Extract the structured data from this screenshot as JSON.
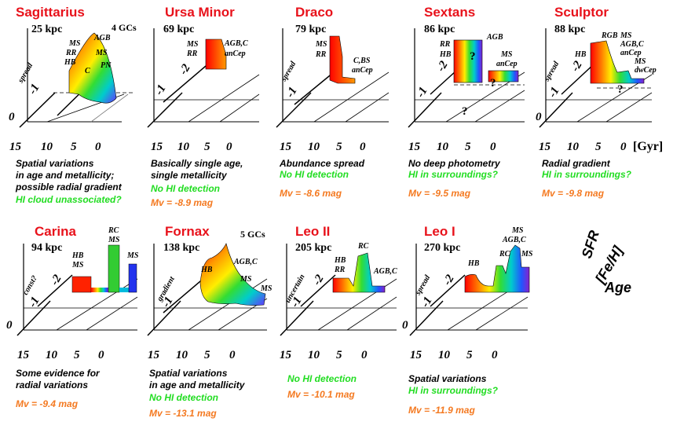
{
  "gyr_label": "[Gyr]",
  "legend": {
    "sfr": "SFR",
    "feh": "[Fe/H]",
    "age": "Age"
  },
  "colors": {
    "name": "#e8121b",
    "text": "#000000",
    "hi": "#22dd22",
    "mv": "#f47920"
  },
  "galaxies": [
    {
      "name": "Sagittarius",
      "distance": "25 kpc",
      "gcs": "4 GCs",
      "spread_label": "spread",
      "feh_ticks": [
        "-1"
      ],
      "zero_label": "0",
      "age_ticks": [
        "15",
        "10",
        "5",
        "0"
      ],
      "pop_labels": [
        "AGB",
        "MS",
        "RR",
        "HB",
        "MS",
        "PN",
        "C"
      ],
      "notes": [
        {
          "text": "Spatial variations",
          "color": "black"
        },
        {
          "text": "in age and metallicity;",
          "color": "black"
        },
        {
          "text": "possible radial gradient",
          "color": "black"
        },
        {
          "text": "HI cloud unassociated?",
          "color": "green"
        }
      ]
    },
    {
      "name": "Ursa Minor",
      "distance": "69 kpc",
      "spread_label": "",
      "feh_ticks": [
        "-1",
        "-2"
      ],
      "zero_label": "",
      "age_ticks": [],
      "pop_labels": [
        "MS",
        "RR",
        "AGB,C",
        "anCep"
      ],
      "notes": [
        {
          "text": "Basically single age,",
          "color": "black"
        },
        {
          "text": "single metallicity",
          "color": "black"
        },
        {
          "text": "No HI detection",
          "color": "green"
        },
        {
          "text": "Mv = -8.9 mag",
          "color": "orange"
        }
      ]
    },
    {
      "name": "Draco",
      "distance": "79 kpc",
      "spread_label": "spread",
      "feh_ticks": [
        "-1"
      ],
      "zero_label": "",
      "age_ticks": [],
      "pop_labels": [
        "MS",
        "RR",
        "C,BS",
        "anCep"
      ],
      "notes": [
        {
          "text": "Abundance spread",
          "color": "black"
        },
        {
          "text": "No HI detection",
          "color": "green"
        },
        {
          "text": "",
          "color": "green"
        },
        {
          "text": "Mv = -8.6 mag",
          "color": "orange"
        }
      ]
    },
    {
      "name": "Sextans",
      "distance": "86 kpc",
      "spread_label": "",
      "feh_ticks": [
        "-2",
        "-1"
      ],
      "zero_label": "",
      "age_ticks": [],
      "pop_labels": [
        "AGB",
        "RR",
        "HB",
        "MS",
        "anCep"
      ],
      "question_marks": [
        "?",
        "?",
        "?"
      ],
      "notes": [
        {
          "text": "No deep photometry",
          "color": "black"
        },
        {
          "text": "HI in surroundings?",
          "color": "green"
        },
        {
          "text": "",
          "color": "green"
        },
        {
          "text": "Mv = -9.5 mag",
          "color": "orange"
        }
      ]
    },
    {
      "name": "Sculptor",
      "distance": "88 kpc",
      "spread_label": "spread",
      "feh_ticks": [
        "-2",
        "-1"
      ],
      "zero_label": "0",
      "age_ticks": [
        "15",
        "10",
        "5",
        "0"
      ],
      "pop_labels": [
        "HB",
        "RGB",
        "MS",
        "AGB,C",
        "anCep",
        "MS",
        "dwCep"
      ],
      "question_marks": [
        "?"
      ],
      "notes": [
        {
          "text": "Radial gradient",
          "color": "black"
        },
        {
          "text": "HI in surroundings?",
          "color": "green"
        },
        {
          "text": "",
          "color": "green"
        },
        {
          "text": "Mv = -9.8 mag",
          "color": "orange"
        }
      ]
    },
    {
      "name": "Carina",
      "distance": "94 kpc",
      "spread_label": "const?",
      "feh_ticks": [
        "-2",
        "-1"
      ],
      "zero_label": "0",
      "age_ticks": [
        "15",
        "10",
        "5",
        "0"
      ],
      "pop_labels": [
        "HB",
        "MS",
        "RC",
        "MS",
        "MS"
      ],
      "notes": [
        {
          "text": "Some evidence for",
          "color": "black"
        },
        {
          "text": "radial variations",
          "color": "black"
        },
        {
          "text": "",
          "color": "green"
        },
        {
          "text": "Mv = -9.4 mag",
          "color": "orange"
        }
      ]
    },
    {
      "name": "Fornax",
      "distance": "138 kpc",
      "gcs": "5 GCs",
      "spread_label": "gradient",
      "feh_ticks": [
        "-1"
      ],
      "zero_label": "",
      "age_ticks": [
        "15",
        "10",
        "5",
        "0"
      ],
      "pop_labels": [
        "HB",
        "AGB,C",
        "MS",
        "MS"
      ],
      "notes": [
        {
          "text": "Spatial variations",
          "color": "black"
        },
        {
          "text": "in age and metallicity",
          "color": "black"
        },
        {
          "text": "No HI detection",
          "color": "green"
        },
        {
          "text": "Mv = -13.1 mag",
          "color": "orange"
        }
      ]
    },
    {
      "name": "Leo II",
      "distance": "205 kpc",
      "spread_label": "uncertain",
      "feh_ticks": [
        "-2",
        "-1"
      ],
      "zero_label": "",
      "age_ticks": [
        "15",
        "10",
        "5",
        "0"
      ],
      "pop_labels": [
        "HB",
        "RR",
        "RC",
        "AGB,C"
      ],
      "notes": [
        {
          "text": "",
          "color": "black"
        },
        {
          "text": "No HI detection",
          "color": "green"
        },
        {
          "text": "Mv = -10.1 mag",
          "color": "orange"
        }
      ]
    },
    {
      "name": "Leo I",
      "distance": "270 kpc",
      "spread_label": "spread",
      "feh_ticks": [
        "-2",
        "-1"
      ],
      "zero_label": "0",
      "age_ticks": [
        "15",
        "10",
        "5",
        "0"
      ],
      "pop_labels": [
        "HB",
        "RC",
        "MS",
        "AGB,C",
        "MS"
      ],
      "notes": [
        {
          "text": "Spatial variations",
          "color": "black"
        },
        {
          "text": "HI in surroundings?",
          "color": "green"
        },
        {
          "text": "Mv = -11.9 mag",
          "color": "orange"
        }
      ]
    }
  ]
}
